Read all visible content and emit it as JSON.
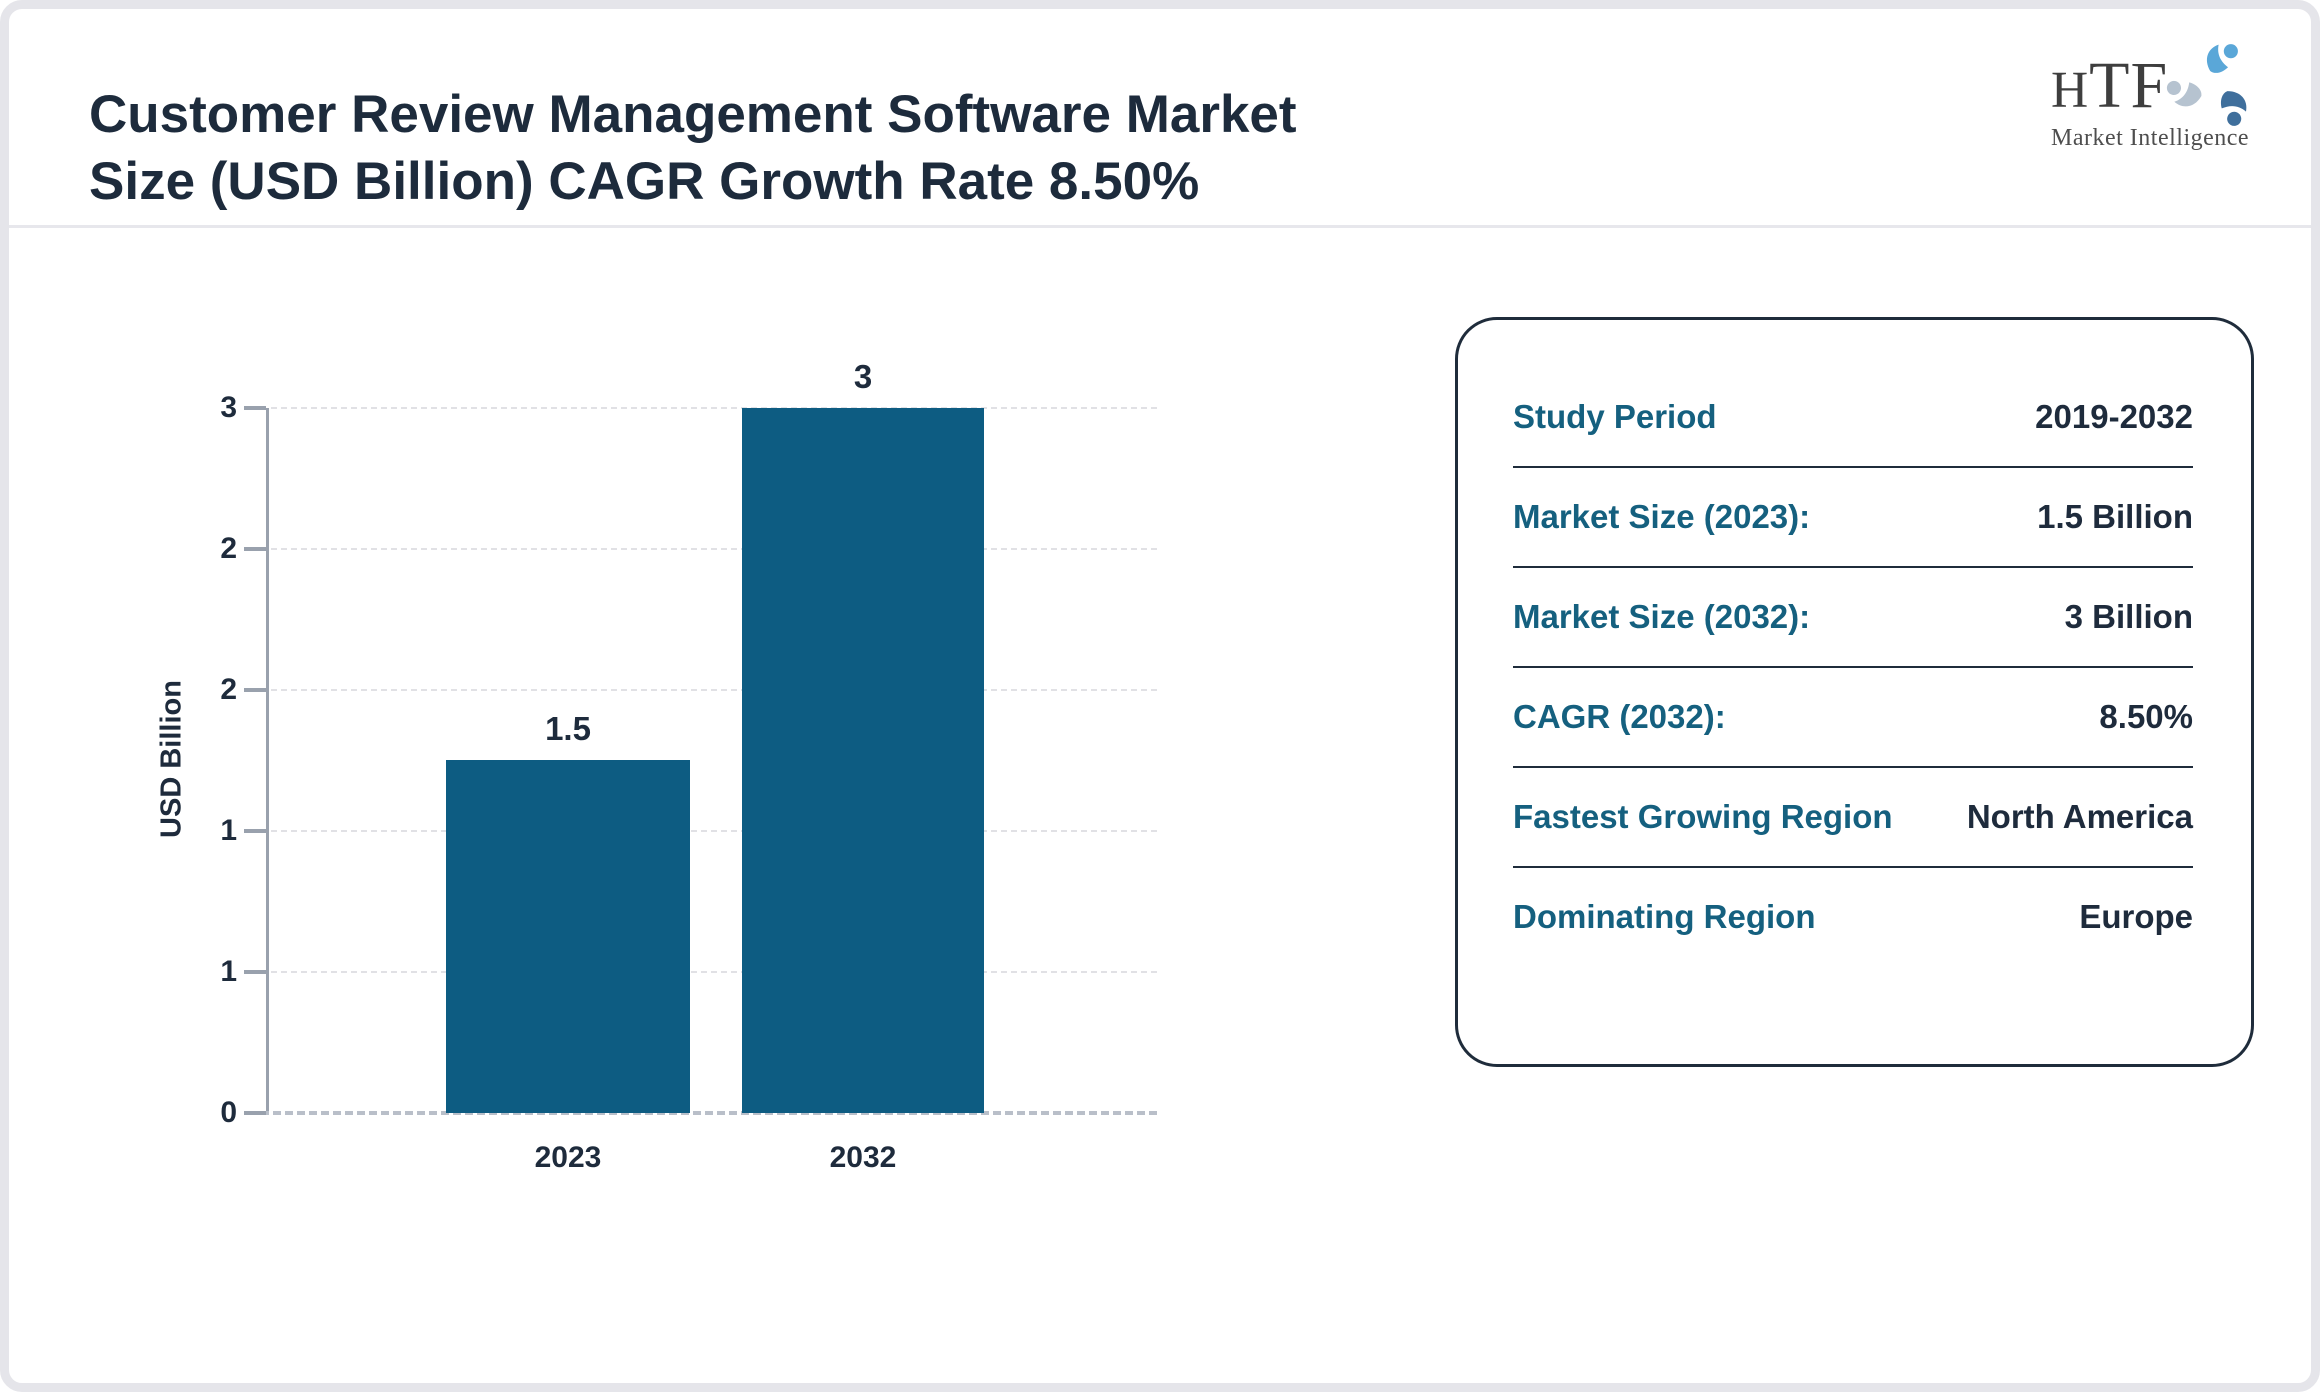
{
  "header": {
    "title_line1": "Customer Review Management Software Market",
    "title_line2": "Size (USD Billion) CAGR Growth Rate 8.50%"
  },
  "logo": {
    "text": "HTF",
    "subtitle": "Market Intelligence"
  },
  "chart_data": {
    "type": "bar",
    "categories": [
      "2023",
      "2032"
    ],
    "values": [
      1.5,
      3
    ],
    "value_labels": [
      "1.5",
      "3"
    ],
    "ylabel": "USD Billion",
    "ylim": [
      0,
      3
    ],
    "yticks": [
      {
        "value": 3,
        "label": "3"
      },
      {
        "value": 2.4,
        "label": "2"
      },
      {
        "value": 1.8,
        "label": "2"
      },
      {
        "value": 1.2,
        "label": "1"
      },
      {
        "value": 0.6,
        "label": "1"
      },
      {
        "value": 0,
        "label": "0"
      }
    ],
    "grid": "horizontal dashed",
    "legend": "none",
    "bar_color": "#0d5c82",
    "axis_color": "#99a1ad",
    "label_color": "#1e2b3c"
  },
  "panel": {
    "rows": [
      {
        "label": "Study Period",
        "value": "2019-2032"
      },
      {
        "label": "Market Size (2023):",
        "value": "1.5 Billion"
      },
      {
        "label": "Market Size (2032):",
        "value": "3 Billion"
      },
      {
        "label": "CAGR (2032):",
        "value": "8.50%"
      },
      {
        "label": "Fastest Growing Region",
        "value": "North America"
      },
      {
        "label": "Dominating Region",
        "value": "Europe"
      }
    ]
  },
  "colors": {
    "accent_teal": "#15607f",
    "bar_teal": "#0d5c82",
    "dark_navy": "#1e2b3c",
    "frame_gray": "#e5e5ea"
  }
}
